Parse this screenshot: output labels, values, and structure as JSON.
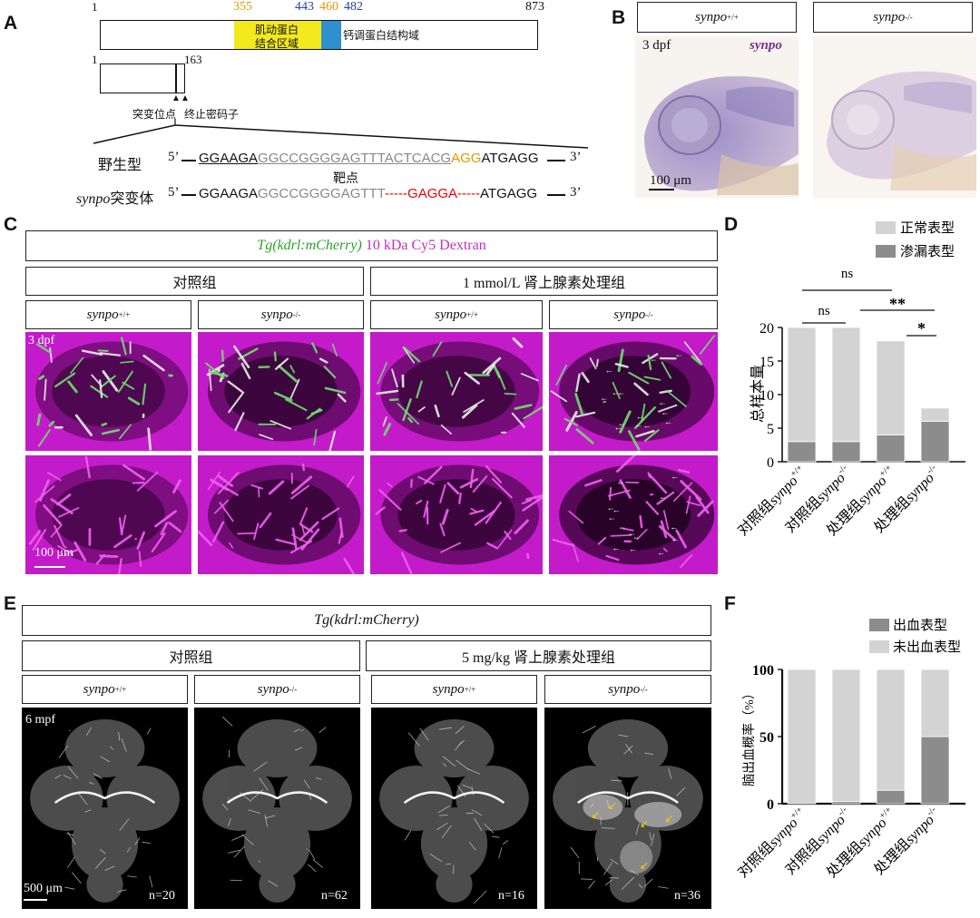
{
  "A": {
    "label": "A",
    "ruler": {
      "n1": "1",
      "n355": "355",
      "n443": "443",
      "n460": "460",
      "n482": "482",
      "n873": "873"
    },
    "domain_actin": "肌动蛋白结合区域",
    "domain_actin_l1": "肌动蛋白",
    "domain_actin_l2": "结合区域",
    "domain_calcineurin": "钙调蛋白结构域",
    "mut_start": "1",
    "mut_end": "163",
    "mutation_site": "突变位点",
    "stop_codon": "终止密码子",
    "wt_label": "野生型",
    "mut_label_gene": "synpo",
    "mut_label_suffix": "突变体",
    "five": "5’",
    "three": "3’",
    "wt_seq": [
      "GGAAGA",
      "GGCCGGGGAGTTTACTCACG",
      "AGG",
      "ATGAGG"
    ],
    "mut_seq": [
      "GGAAGA",
      "GGCCGGGGAGTTT",
      "-----",
      "GAGGA",
      "-----",
      "ATGAGG"
    ],
    "target": "靶点"
  },
  "B": {
    "label": "B",
    "wt": "synpo",
    "wt_sup": "+/+",
    "mut": "synpo",
    "mut_sup": "-/-",
    "age": "3 dpf",
    "probe": "synpo",
    "scale": "100 μm"
  },
  "C": {
    "label": "C",
    "title_green": "Tg(kdrl:mCherry)",
    "title_magenta": "10 kDa Cy5 Dextran",
    "control": "对照组",
    "treated": "1 mmol/L 肾上腺素处理组",
    "geno": [
      {
        "g": "synpo",
        "s": "+/+"
      },
      {
        "g": "synpo",
        "s": "-/-"
      },
      {
        "g": "synpo",
        "s": "+/+"
      },
      {
        "g": "synpo",
        "s": "-/-"
      }
    ],
    "age": "3 dpf",
    "scale": "100 μm"
  },
  "D": {
    "label": "D",
    "legend": [
      "正常表型",
      "渗漏表型"
    ],
    "ylabel": "总样本量",
    "sig": [
      "ns",
      "ns",
      "**",
      "*"
    ]
  },
  "E": {
    "label": "E",
    "title": "Tg(kdrl:mCherry)",
    "control": "对照组",
    "treated": "5 mg/kg 肾上腺素处理组",
    "geno": [
      {
        "g": "synpo",
        "s": "+/+"
      },
      {
        "g": "synpo",
        "s": "-/-"
      },
      {
        "g": "synpo",
        "s": "+/+"
      },
      {
        "g": "synpo",
        "s": "-/-"
      }
    ],
    "age": "6 mpf",
    "scale": "500 μm",
    "n": [
      "n=20",
      "n=62",
      "n=16",
      "n=36"
    ]
  },
  "F": {
    "label": "F",
    "legend": [
      "出血表型",
      "未出血表型"
    ],
    "ylabel": "脑出血概率（%）"
  },
  "chart_data": [
    {
      "type": "bar",
      "panel": "D",
      "stacked": true,
      "categories": [
        "对照组synpo+/+",
        "对照组synpo-/-",
        "处理组synpo+/+",
        "处理组synpo-/-"
      ],
      "series": [
        {
          "name": "渗漏表型",
          "color": "#8c8c8c",
          "values": [
            3,
            3,
            4,
            6
          ]
        },
        {
          "name": "正常表型",
          "color": "#d3d3d3",
          "values": [
            17,
            17,
            14,
            2
          ]
        }
      ],
      "ylabel": "总样本量",
      "ylim": [
        0,
        20
      ],
      "yticks": [
        0,
        5,
        10,
        15,
        20
      ],
      "legend": "top-right",
      "annotations": [
        "ns",
        "ns",
        "**",
        "*"
      ]
    },
    {
      "type": "bar",
      "panel": "F",
      "stacked": true,
      "categories": [
        "对照组synpo+/+",
        "对照组synpo-/-",
        "处理组synpo+/+",
        "处理组synpo-/-"
      ],
      "series": [
        {
          "name": "出血表型",
          "color": "#8c8c8c",
          "values": [
            0,
            1.6,
            10,
            50
          ]
        },
        {
          "name": "未出血表型",
          "color": "#d3d3d3",
          "values": [
            100,
            98.4,
            90,
            50
          ]
        }
      ],
      "ylabel": "脑出血概率（%）",
      "ylim": [
        0,
        100
      ],
      "yticks": [
        0,
        50,
        100
      ],
      "legend": "top-right"
    }
  ]
}
